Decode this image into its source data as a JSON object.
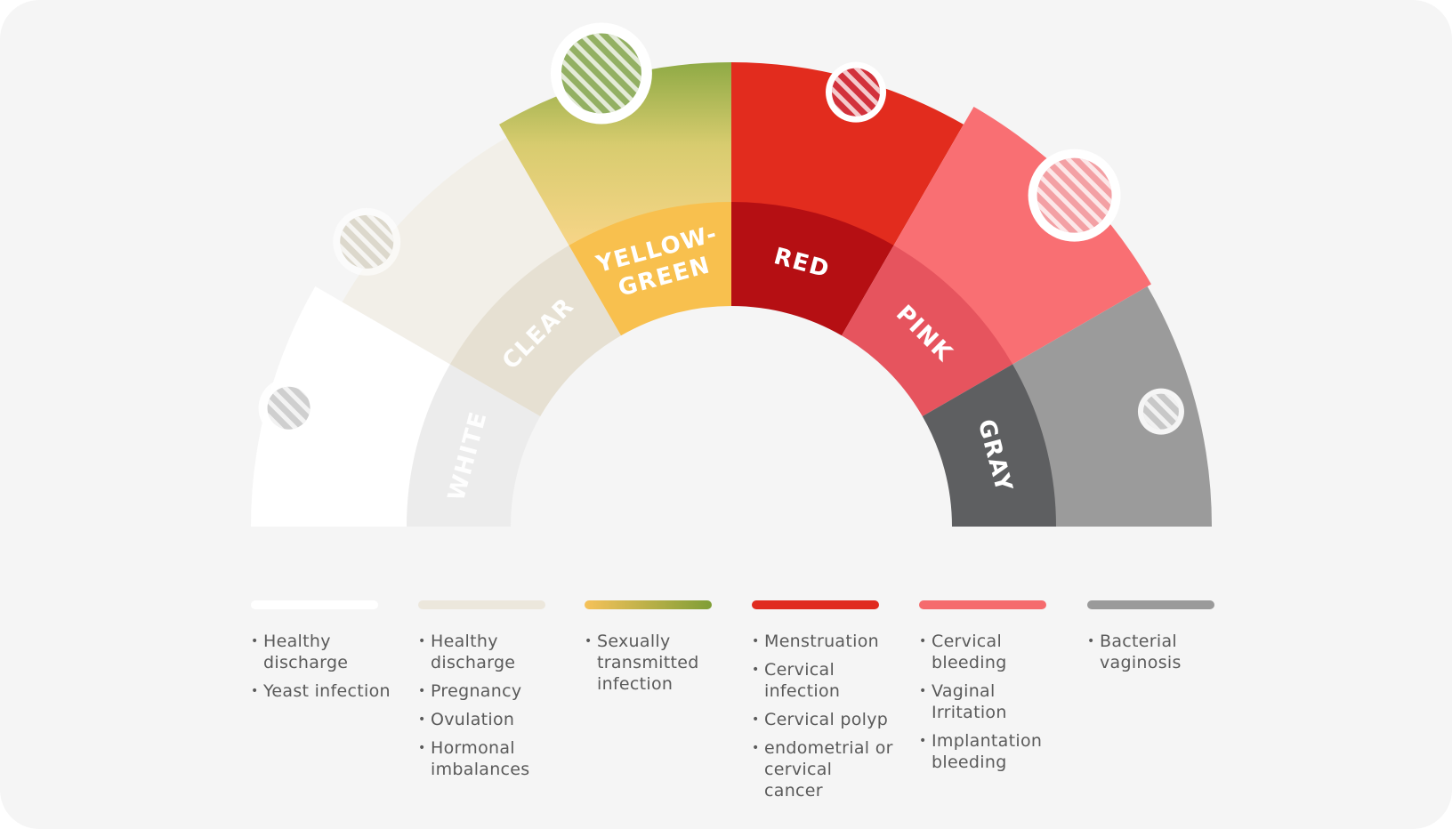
{
  "colors": [
    {
      "key": "white",
      "label": "WHITE",
      "bar_color": "#ffffff",
      "items": [
        "Healthy discharge",
        "Yeast infection"
      ]
    },
    {
      "key": "clear",
      "label": "CLEAR",
      "bar_color": "#ece7dc",
      "items": [
        "Healthy discharge",
        "Pregnancy",
        "Ovulation",
        "Hormonal imbalances"
      ]
    },
    {
      "key": "yellow-green",
      "label": "YELLOW-GREEN",
      "label_lines": [
        "YELLOW-",
        "GREEN"
      ],
      "bar_color": "#f6c25a",
      "bar_color_end": "#7f9e36",
      "items": [
        "Sexually transmitted infection"
      ]
    },
    {
      "key": "red",
      "label": "RED",
      "bar_color": "#e02b1f",
      "items": [
        "Menstruation",
        "Cervical infection",
        "Cervical polyp",
        "endometrial or cervical cancer"
      ]
    },
    {
      "key": "pink",
      "label": "PINK",
      "bar_color": "#f56b6d",
      "items": [
        "Cervical bleeding",
        "Vaginal Irritation",
        "Implantation bleeding"
      ]
    },
    {
      "key": "gray",
      "label": "GRAY",
      "bar_color": "#9a9a9a",
      "items": [
        "Bacterial vaginosis"
      ]
    }
  ],
  "segment_fills": {
    "white": {
      "outer": "#ffffff",
      "inner": "#ececec"
    },
    "clear": {
      "outer": "#f2efe8",
      "inner": "#e6e0d2"
    },
    "yellow-green": {
      "outer_top": "#8faa45",
      "outer_bottom": "#f7d588",
      "inner": "#f8c04e"
    },
    "red": {
      "outer": "#e22c1e",
      "inner": "#b50f13"
    },
    "pink": {
      "outer": "#f96f73",
      "inner": "#e6545e"
    },
    "gray": {
      "outer": "#9b9b9b",
      "inner": "#5e5f61"
    }
  },
  "icons": [
    {
      "name": "white-swatch-icon",
      "color": "#cfcfcf",
      "segment": "white"
    },
    {
      "name": "clear-swatch-icon",
      "color": "#dcd8cc",
      "segment": "clear"
    },
    {
      "name": "yellow-green-swatch-icon",
      "color": "#93b063",
      "segment": "yellow-green"
    },
    {
      "name": "red-swatch-icon",
      "color": "#d2323c",
      "segment": "red"
    },
    {
      "name": "pink-swatch-icon",
      "color": "#f3a0a4",
      "segment": "pink"
    },
    {
      "name": "gray-swatch-icon",
      "color": "#c8c8c8",
      "segment": "gray"
    }
  ]
}
